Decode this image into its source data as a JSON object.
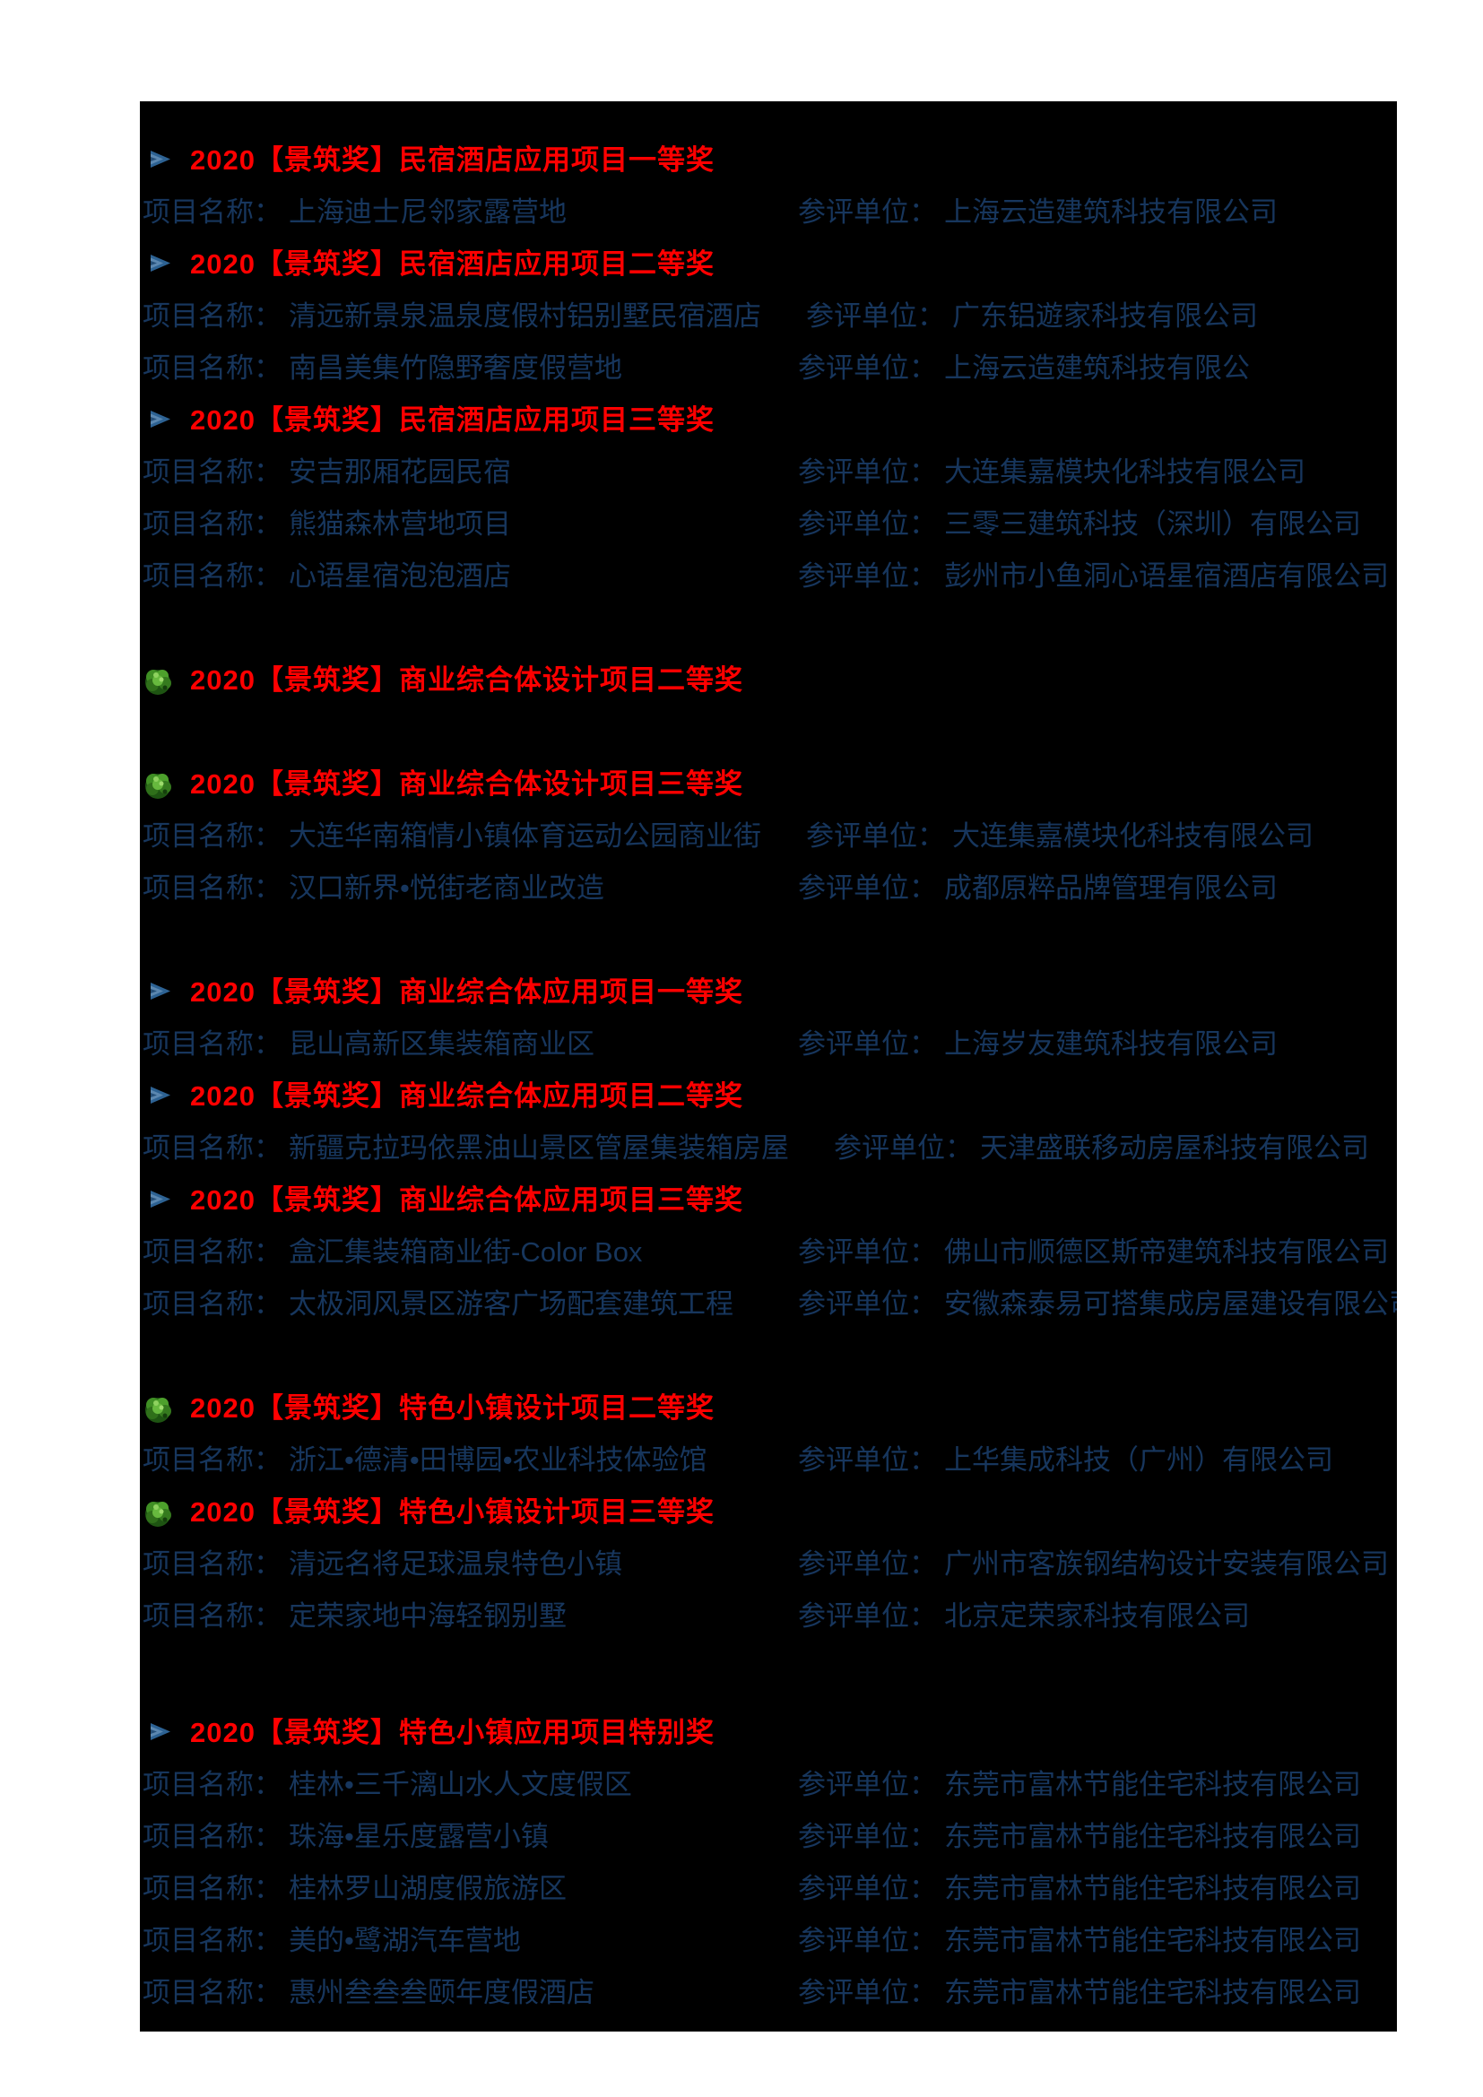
{
  "colors": {
    "board_background": "#000000",
    "heading_red": "#FF0000",
    "body_blue": "#17365D"
  },
  "labels": {
    "project": "项目名称：",
    "unit": "参评单位："
  },
  "icons": {
    "arrow": "arrow-bullet-icon",
    "tree": "tree-bullet-icon"
  },
  "blocks": [
    {
      "type": "heading",
      "bullet": "arrow",
      "text": "2020【景筑奖】民宿酒店应用项目一等奖"
    },
    {
      "type": "row",
      "project": "上海迪士尼邻家露营地",
      "unit": "上海云造建筑科技有限公司"
    },
    {
      "type": "heading",
      "bullet": "arrow",
      "text": "2020【景筑奖】民宿酒店应用项目二等奖"
    },
    {
      "type": "row",
      "project": "清远新景泉温泉度假村铝别墅民宿酒店",
      "unit": "广东铝遊家科技有限公司"
    },
    {
      "type": "row",
      "project": "南昌美集竹隐野奢度假营地",
      "unit": "上海云造建筑科技有限公"
    },
    {
      "type": "heading",
      "bullet": "arrow",
      "text": "2020【景筑奖】民宿酒店应用项目三等奖"
    },
    {
      "type": "row",
      "project": "安吉那厢花园民宿",
      "unit": "大连集嘉模块化科技有限公司"
    },
    {
      "type": "row",
      "project": "熊猫森林营地项目",
      "unit": "三零三建筑科技（深圳）有限公司"
    },
    {
      "type": "row",
      "project": "心语星宿泡泡酒店",
      "unit": "彭州市小鱼洞心语星宿酒店有限公司"
    },
    {
      "type": "spacer"
    },
    {
      "type": "heading",
      "bullet": "tree",
      "text": "2020【景筑奖】商业综合体设计项目二等奖"
    },
    {
      "type": "spacer"
    },
    {
      "type": "heading",
      "bullet": "tree",
      "text": "2020【景筑奖】商业综合体设计项目三等奖"
    },
    {
      "type": "row",
      "project": "大连华南箱情小镇体育运动公园商业街",
      "unit": "大连集嘉模块化科技有限公司"
    },
    {
      "type": "row",
      "project": "汉口新界•悦街老商业改造",
      "unit": "成都原粹品牌管理有限公司"
    },
    {
      "type": "spacer"
    },
    {
      "type": "heading",
      "bullet": "arrow",
      "text": "2020【景筑奖】商业综合体应用项目一等奖"
    },
    {
      "type": "row",
      "project": "昆山高新区集装箱商业区",
      "unit": "上海岁友建筑科技有限公司"
    },
    {
      "type": "heading",
      "bullet": "arrow",
      "text": "2020【景筑奖】商业综合体应用项目二等奖"
    },
    {
      "type": "row",
      "project": "新疆克拉玛依黑油山景区管屋集装箱房屋",
      "unit": "天津盛联移动房屋科技有限公司"
    },
    {
      "type": "heading",
      "bullet": "arrow",
      "text": "2020【景筑奖】商业综合体应用项目三等奖"
    },
    {
      "type": "row",
      "project": "盒汇集装箱商业街-Color Box",
      "unit": "佛山市顺德区斯帝建筑科技有限公司"
    },
    {
      "type": "row",
      "project": "太极洞风景区游客广场配套建筑工程",
      "unit": "安徽森泰易可搭集成房屋建设有限公司"
    },
    {
      "type": "spacer"
    },
    {
      "type": "heading",
      "bullet": "tree",
      "text": "2020【景筑奖】特色小镇设计项目二等奖"
    },
    {
      "type": "row",
      "project": "浙江•德清•田博园•农业科技体验馆",
      "unit": "上华集成科技（广州）有限公司"
    },
    {
      "type": "heading",
      "bullet": "tree",
      "text": "2020【景筑奖】特色小镇设计项目三等奖"
    },
    {
      "type": "row",
      "project": "清远名将足球温泉特色小镇",
      "unit": "广州市客族钢结构设计安装有限公司"
    },
    {
      "type": "row",
      "project": "定荣家地中海轻钢别墅",
      "unit": "北京定荣家科技有限公司"
    },
    {
      "type": "spacer",
      "size": "tall"
    },
    {
      "type": "heading",
      "bullet": "arrow",
      "text": "2020【景筑奖】特色小镇应用项目特别奖"
    },
    {
      "type": "row",
      "project": "桂林•三千漓山水人文度假区",
      "unit": "东莞市富林节能住宅科技有限公司"
    },
    {
      "type": "row",
      "project": "珠海•星乐度露营小镇",
      "unit": "东莞市富林节能住宅科技有限公司"
    },
    {
      "type": "row",
      "project": "桂林罗山湖度假旅游区",
      "unit": "东莞市富林节能住宅科技有限公司"
    },
    {
      "type": "row",
      "project": "美的•鹭湖汽车营地",
      "unit": "东莞市富林节能住宅科技有限公司"
    },
    {
      "type": "row",
      "project": "惠州叁叁叁颐年度假酒店",
      "unit": "东莞市富林节能住宅科技有限公司"
    }
  ]
}
